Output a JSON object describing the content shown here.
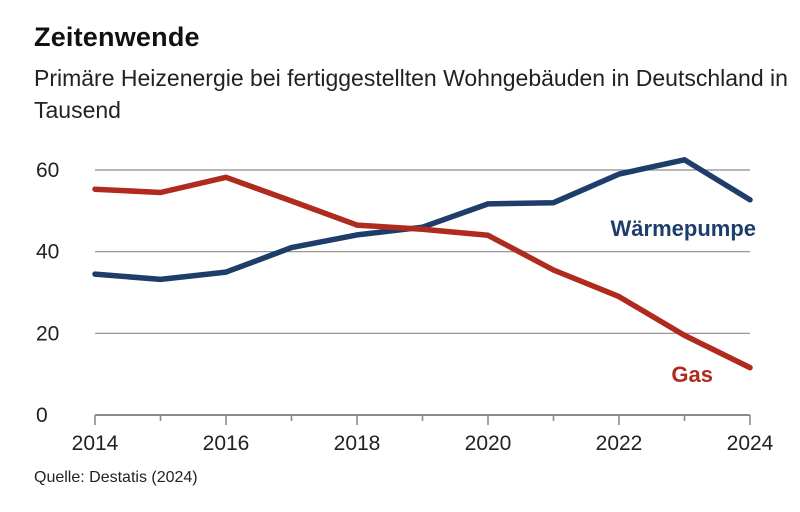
{
  "chart_data": {
    "type": "line",
    "title": "Zeitenwende",
    "subtitle": "Primäre Heizenergie bei fertiggestellten Wohngebäuden in Deutschland in Tausend",
    "source": "Quelle: Destatis (2024)",
    "x": [
      2014,
      2015,
      2016,
      2017,
      2018,
      2019,
      2020,
      2021,
      2022,
      2023,
      2024
    ],
    "x_tick_labels": [
      "2014",
      "2016",
      "2018",
      "2020",
      "2022",
      "2024"
    ],
    "y_tick_labels": [
      "0",
      "20",
      "40",
      "60"
    ],
    "ylim": [
      0,
      60
    ],
    "xlim": [
      2014,
      2024
    ],
    "grid": true,
    "legend": "inline labels",
    "series": [
      {
        "name": "Wärmepumpe",
        "color": "#1f3d6b",
        "values": [
          34.5,
          33.2,
          35.0,
          41.0,
          44.1,
          46.0,
          51.7,
          52.0,
          59.0,
          62.5,
          52.7
        ]
      },
      {
        "name": "Gas",
        "color": "#b02a1e",
        "values": [
          55.3,
          54.5,
          58.2,
          52.4,
          46.5,
          45.5,
          44.0,
          35.5,
          29.0,
          19.5,
          11.6
        ]
      }
    ]
  }
}
